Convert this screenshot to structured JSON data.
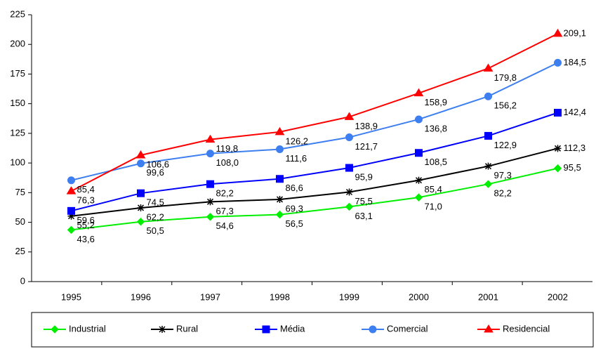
{
  "chart_data": {
    "type": "line",
    "categories": [
      "1995",
      "1996",
      "1997",
      "1998",
      "1999",
      "2000",
      "2001",
      "2002"
    ],
    "series": [
      {
        "name": "Industrial",
        "color": "#00ee00",
        "marker": "diamond",
        "values": [
          43.6,
          50.5,
          54.6,
          56.5,
          63.1,
          71.0,
          82.2,
          95.5
        ],
        "value_labels": [
          "43,6",
          "50,5",
          "54,6",
          "56,5",
          "63,1",
          "71,0",
          "82,2",
          "95,5"
        ]
      },
      {
        "name": "Rural",
        "color": "#000000",
        "marker": "asterisk",
        "values": [
          55.2,
          62.2,
          67.3,
          69.3,
          75.5,
          85.4,
          97.3,
          112.3
        ],
        "value_labels": [
          "55,2",
          "62,2",
          "67,3",
          "69,3",
          "75,5",
          "85,4",
          "97,3",
          "112,3"
        ]
      },
      {
        "name": "Média",
        "color": "#0000ff",
        "marker": "square",
        "values": [
          59.6,
          74.5,
          82.2,
          86.6,
          95.9,
          108.5,
          122.9,
          142.4
        ],
        "value_labels": [
          "59,6",
          "74,5",
          "82,2",
          "86,6",
          "95,9",
          "108,5",
          "122,9",
          "142,4"
        ]
      },
      {
        "name": "Comercial",
        "color": "#3d7ff0",
        "marker": "circle",
        "values": [
          85.4,
          99.6,
          108.0,
          111.6,
          121.7,
          136.8,
          156.2,
          184.5
        ],
        "value_labels": [
          "85,4",
          "99,6",
          "108,0",
          "111,6",
          "121,7",
          "136,8",
          "156,2",
          "184,5"
        ]
      },
      {
        "name": "Residencial",
        "color": "#ff0000",
        "marker": "triangle",
        "values": [
          76.3,
          106.6,
          119.8,
          126.2,
          138.9,
          158.9,
          179.8,
          209.1
        ],
        "value_labels": [
          "76,3",
          "106,6",
          "119,8",
          "126,2",
          "138,9",
          "158,9",
          "179,8",
          "209,1"
        ]
      }
    ],
    "ylim": [
      0,
      225
    ],
    "yticks": [
      0,
      25,
      50,
      75,
      100,
      125,
      150,
      175,
      200,
      225
    ],
    "grid": false,
    "legend": "bottom"
  }
}
